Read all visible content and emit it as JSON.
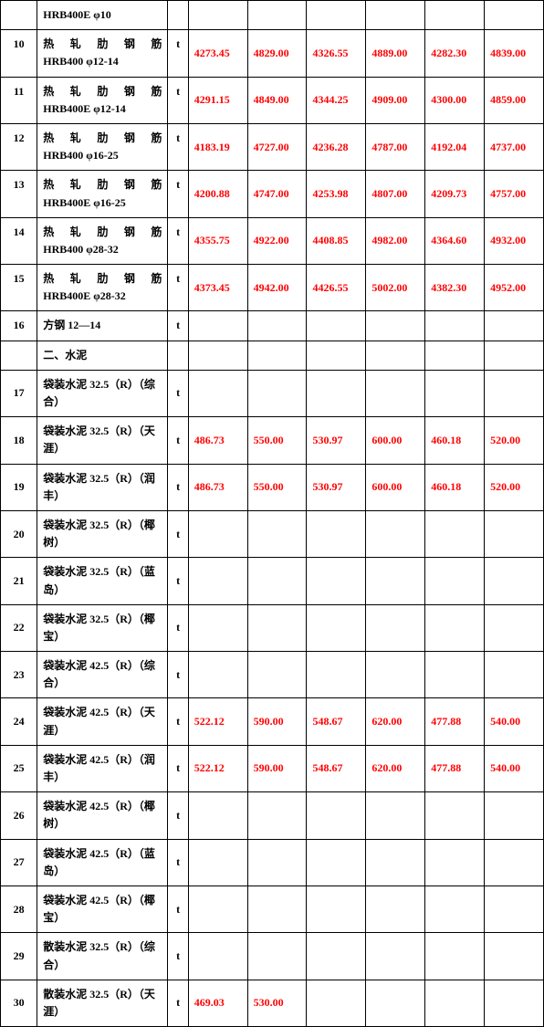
{
  "rows": [
    {
      "idx": "",
      "name": "HRB400E φ10",
      "unit": "",
      "prices": [
        "",
        "",
        "",
        "",
        "",
        ""
      ],
      "tall": false,
      "justify": false
    },
    {
      "idx": "10",
      "name_line1": "热 轧 肋 钢 筋",
      "name_line2": "HRB400 φ12-14",
      "unit": "t",
      "prices": [
        "4273.45",
        "4829.00",
        "4326.55",
        "4889.00",
        "4282.30",
        "4839.00"
      ],
      "tall": true,
      "two": true
    },
    {
      "idx": "11",
      "name_line1": "热 轧 肋 钢 筋",
      "name_line2": "HRB400E φ12-14",
      "unit": "t",
      "prices": [
        "4291.15",
        "4849.00",
        "4344.25",
        "4909.00",
        "4300.00",
        "4859.00"
      ],
      "tall": true,
      "two": true
    },
    {
      "idx": "12",
      "name_line1": "热 轧 肋 钢 筋",
      "name_line2": "HRB400 φ16-25",
      "unit": "t",
      "prices": [
        "4183.19",
        "4727.00",
        "4236.28",
        "4787.00",
        "4192.04",
        "4737.00"
      ],
      "tall": true,
      "two": true
    },
    {
      "idx": "13",
      "name_line1": "热 轧 肋 钢 筋",
      "name_line2": "HRB400E φ16-25",
      "unit": "t",
      "prices": [
        "4200.88",
        "4747.00",
        "4253.98",
        "4807.00",
        "4209.73",
        "4757.00"
      ],
      "tall": true,
      "two": true
    },
    {
      "idx": "14",
      "name_line1": "热 轧 肋 钢 筋",
      "name_line2": "HRB400 φ28-32",
      "unit": "t",
      "prices": [
        "4355.75",
        "4922.00",
        "4408.85",
        "4982.00",
        "4364.60",
        "4932.00"
      ],
      "tall": true,
      "two": true
    },
    {
      "idx": "15",
      "name_line1": "热 轧 肋 钢 筋",
      "name_line2": "HRB400E φ28-32",
      "unit": "t",
      "prices": [
        "4373.45",
        "4942.00",
        "4426.55",
        "5002.00",
        "4382.30",
        "4952.00"
      ],
      "tall": true,
      "two": true
    },
    {
      "idx": "16",
      "name": "方钢 12—14",
      "unit": "t",
      "prices": [
        "",
        "",
        "",
        "",
        "",
        ""
      ],
      "tall": false
    },
    {
      "idx": "",
      "name": "二、水泥",
      "unit": "",
      "prices": [
        "",
        "",
        "",
        "",
        "",
        ""
      ],
      "tall": false
    },
    {
      "idx": "17",
      "name": "袋装水泥 32.5（R）（综合）",
      "unit": "t",
      "prices": [
        "",
        "",
        "",
        "",
        "",
        ""
      ],
      "tall": true
    },
    {
      "idx": "18",
      "name": "袋装水泥 32.5（R）（天涯）",
      "unit": "t",
      "prices": [
        "486.73",
        "550.00",
        "530.97",
        "600.00",
        "460.18",
        "520.00"
      ],
      "tall": true
    },
    {
      "idx": "19",
      "name": "袋装水泥 32.5（R）（润丰）",
      "unit": "t",
      "prices": [
        "486.73",
        "550.00",
        "530.97",
        "600.00",
        "460.18",
        "520.00"
      ],
      "tall": true
    },
    {
      "idx": "20",
      "name": "袋装水泥 32.5（R）（椰树）",
      "unit": "t",
      "prices": [
        "",
        "",
        "",
        "",
        "",
        ""
      ],
      "tall": true
    },
    {
      "idx": "21",
      "name": "袋装水泥 32.5（R）（蓝岛）",
      "unit": "t",
      "prices": [
        "",
        "",
        "",
        "",
        "",
        ""
      ],
      "tall": true
    },
    {
      "idx": "22",
      "name": "袋装水泥 32.5（R）（椰宝）",
      "unit": "t",
      "prices": [
        "",
        "",
        "",
        "",
        "",
        ""
      ],
      "tall": true
    },
    {
      "idx": "23",
      "name": "袋装水泥 42.5（R）（综合）",
      "unit": "t",
      "prices": [
        "",
        "",
        "",
        "",
        "",
        ""
      ],
      "tall": true
    },
    {
      "idx": "24",
      "name": "袋装水泥 42.5（R）（天涯）",
      "unit": "t",
      "prices": [
        "522.12",
        "590.00",
        "548.67",
        "620.00",
        "477.88",
        "540.00"
      ],
      "tall": true
    },
    {
      "idx": "25",
      "name": "袋装水泥 42.5（R）（润丰）",
      "unit": "t",
      "prices": [
        "522.12",
        "590.00",
        "548.67",
        "620.00",
        "477.88",
        "540.00"
      ],
      "tall": true
    },
    {
      "idx": "26",
      "name": "袋装水泥 42.5（R）（椰树）",
      "unit": "t",
      "prices": [
        "",
        "",
        "",
        "",
        "",
        ""
      ],
      "tall": true
    },
    {
      "idx": "27",
      "name": "袋装水泥 42.5（R）（蓝岛）",
      "unit": "t",
      "prices": [
        "",
        "",
        "",
        "",
        "",
        ""
      ],
      "tall": true
    },
    {
      "idx": "28",
      "name": "袋装水泥 42.5（R）（椰宝）",
      "unit": "t",
      "prices": [
        "",
        "",
        "",
        "",
        "",
        ""
      ],
      "tall": true
    },
    {
      "idx": "29",
      "name": "散装水泥 32.5（R）（综合）",
      "unit": "t",
      "prices": [
        "",
        "",
        "",
        "",
        "",
        ""
      ],
      "tall": true
    },
    {
      "idx": "30",
      "name": "散装水泥 32.5（R）（天涯）",
      "unit": "t",
      "prices": [
        "469.03",
        "530.00",
        "",
        "",
        "",
        ""
      ],
      "tall": true
    }
  ]
}
